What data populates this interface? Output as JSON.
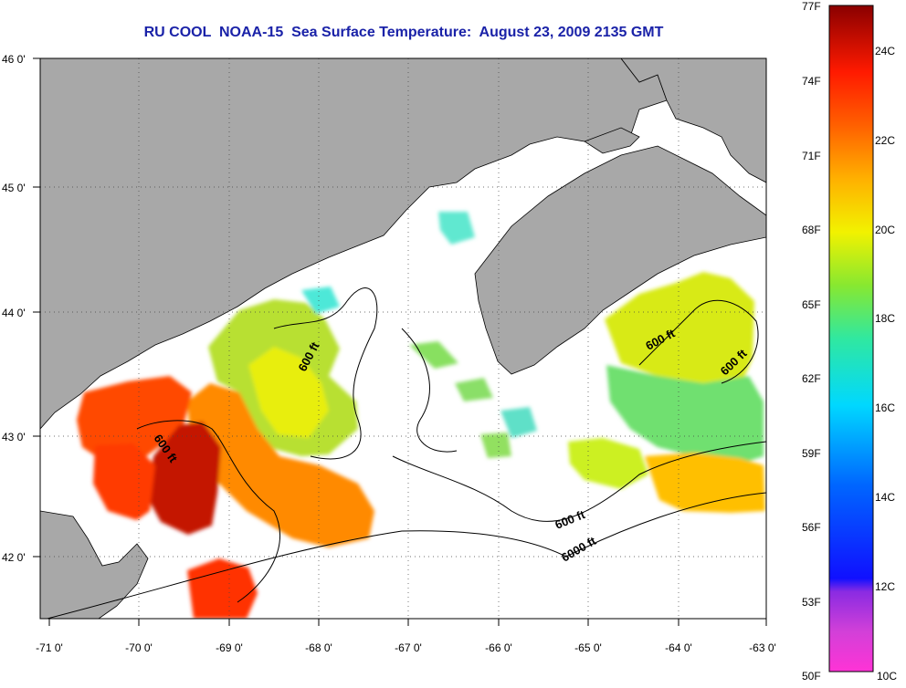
{
  "title": "RU COOL  NOAA-15  Sea Surface Temperature:  August 23, 2009 2135 GMT",
  "map": {
    "lon_ticks": [
      "-71 0'",
      "-70 0'",
      "-69 0'",
      "-68 0'",
      "-67 0'",
      "-66 0'",
      "-65 0'",
      "-64 0'",
      "-63 0'"
    ],
    "lat_ticks": [
      "46 0'",
      "45 0'",
      "44 0'",
      "43 0'",
      "42 0'"
    ],
    "contour_labels": [
      "600 ft",
      "600 ft",
      "600 ft",
      "600 ft",
      "600 ft",
      "6000 ft"
    ],
    "colors": {
      "land": "#a8a8a8",
      "ocean": "#ffffff",
      "contour": "#000000"
    }
  },
  "colorbar": {
    "fahrenheit": [
      "77F",
      "74F",
      "71F",
      "68F",
      "65F",
      "62F",
      "59F",
      "56F",
      "53F",
      "50F"
    ],
    "celsius": [
      "24C",
      "22C",
      "20C",
      "18C",
      "16C",
      "14C",
      "12C",
      "10C"
    ]
  }
}
